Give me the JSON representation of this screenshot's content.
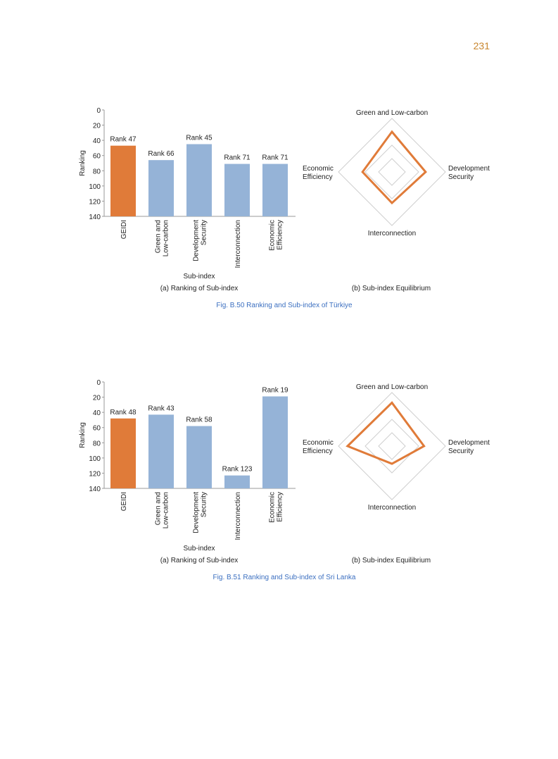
{
  "page": {
    "number": "231",
    "number_color": "#c8862e",
    "caption_color": "#3b6fc0"
  },
  "figures": [
    {
      "caption": "Fig. B.50    Ranking and Sub-index of Türkiye",
      "sub_a": "(a) Ranking of Sub-index",
      "sub_b": "(b) Sub-index Equilibrium"
    },
    {
      "caption": "Fig. B.51    Ranking and Sub-index of Sri Lanka",
      "sub_a": "(a) Ranking of Sub-index",
      "sub_b": "(b) Sub-index Equilibrium"
    }
  ],
  "chart_data": [
    {
      "type": "bar",
      "title": "(a) Ranking of Sub-index",
      "xlabel": "Sub-index",
      "ylabel": "Ranking",
      "ylim": [
        0,
        140
      ],
      "y_inverted": true,
      "yticks": [
        "0",
        "20",
        "40",
        "60",
        "80",
        "100",
        "120",
        "140"
      ],
      "categories": [
        [
          "GEIDI"
        ],
        [
          "Green and",
          "Low-carbon"
        ],
        [
          "Development",
          "Security"
        ],
        [
          "Interconnection"
        ],
        [
          "Economic",
          "Efficiency"
        ]
      ],
      "values": [
        47,
        66,
        45,
        71,
        71
      ],
      "labels": [
        "Rank 47",
        "Rank 66",
        "Rank 45",
        "Rank 71",
        "Rank 71"
      ],
      "colors": [
        "#e07b39",
        "#95b3d7",
        "#95b3d7",
        "#95b3d7",
        "#95b3d7"
      ]
    },
    {
      "type": "radar",
      "title": "(b) Sub-index Equilibrium",
      "axes": [
        [
          "Green and Low-carbon"
        ],
        [
          "Development",
          "Security"
        ],
        [
          "Interconnection"
        ],
        [
          "Economic",
          "Efficiency"
        ]
      ],
      "values": [
        0.75,
        0.63,
        0.58,
        0.55
      ],
      "rings": [
        0.25,
        0.5,
        1.0
      ],
      "color": "#e07b39"
    },
    {
      "type": "bar",
      "title": "(a) Ranking of Sub-index",
      "xlabel": "Sub-index",
      "ylabel": "Ranking",
      "ylim": [
        0,
        140
      ],
      "y_inverted": true,
      "yticks": [
        "0",
        "20",
        "40",
        "60",
        "80",
        "100",
        "120",
        "140"
      ],
      "categories": [
        [
          "GEIDI"
        ],
        [
          "Green and",
          "Low-carbon"
        ],
        [
          "Development",
          "Security"
        ],
        [
          "Interconnection"
        ],
        [
          "Economic",
          "Efficiency"
        ]
      ],
      "values": [
        48,
        43,
        58,
        123,
        19
      ],
      "labels": [
        "Rank 48",
        "Rank 43",
        "Rank 58",
        "Rank 123",
        "Rank 19"
      ],
      "colors": [
        "#e07b39",
        "#95b3d7",
        "#95b3d7",
        "#95b3d7",
        "#95b3d7"
      ]
    },
    {
      "type": "radar",
      "title": "(b) Sub-index Equilibrium",
      "axes": [
        [
          "Green and Low-carbon"
        ],
        [
          "Development",
          "Security"
        ],
        [
          "Interconnection"
        ],
        [
          "Economic",
          "Efficiency"
        ]
      ],
      "values": [
        0.81,
        0.6,
        0.33,
        0.83
      ],
      "rings": [
        0.25,
        0.5,
        1.0
      ],
      "color": "#e07b39"
    }
  ]
}
